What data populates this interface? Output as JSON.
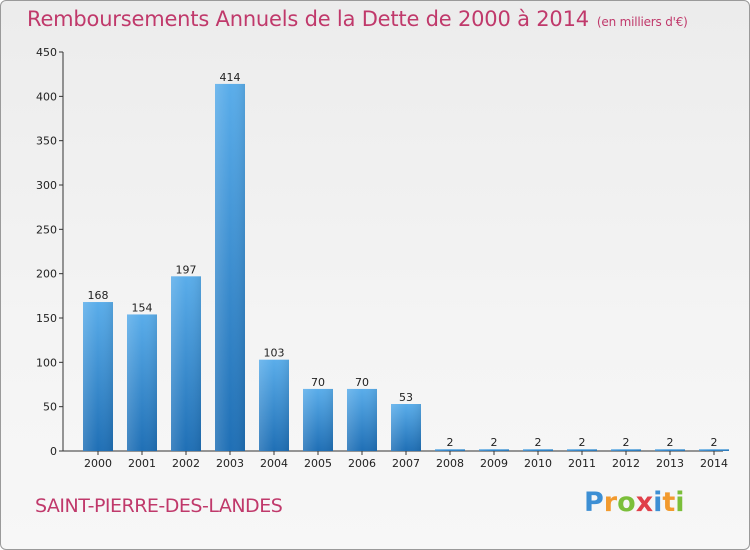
{
  "chart_data": {
    "type": "bar",
    "title": "Remboursements Annuels de la Dette de 2000 à 2014",
    "subtitle": "(en milliers d'€)",
    "categories": [
      "2000",
      "2001",
      "2002",
      "2003",
      "2004",
      "2005",
      "2006",
      "2007",
      "2008",
      "2009",
      "2010",
      "2011",
      "2012",
      "2013",
      "2014"
    ],
    "values": [
      168,
      154,
      197,
      414,
      103,
      70,
      70,
      53,
      2,
      2,
      2,
      2,
      2,
      2,
      2
    ],
    "ylim": [
      0,
      450
    ],
    "yticks": [
      0,
      50,
      100,
      150,
      200,
      250,
      300,
      350,
      400,
      450
    ],
    "grid": false,
    "bar_color": "#3a8fd8"
  },
  "footer": {
    "commune": "SAINT-PIERRE-DES-LANDES",
    "logo": {
      "letters": [
        "P",
        "r",
        "o",
        "x",
        "i",
        "t",
        "i"
      ],
      "colors": [
        "#3d8fd4",
        "#f29a2e",
        "#7bbf3a",
        "#e0404a",
        "#3d8fd4",
        "#f29a2e",
        "#7bbf3a"
      ]
    }
  }
}
